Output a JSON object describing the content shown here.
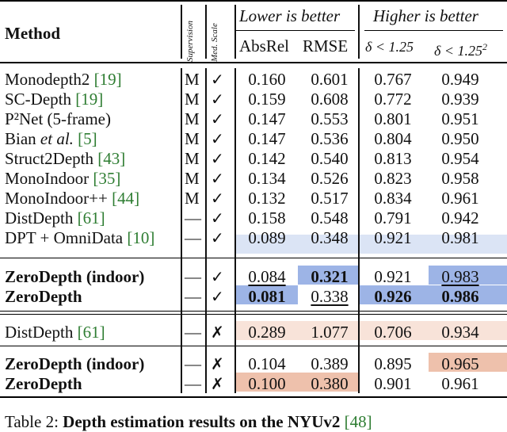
{
  "header": {
    "method": "Method",
    "supervision": "Supervision",
    "med_scale": "Med. Scale",
    "lower": "Lower is better",
    "higher": "Higher is better",
    "absrel": "AbsRel",
    "rmse": "RMSE",
    "d1": "δ < 1.25",
    "d2_base": "δ < 1.25",
    "d2_sup": "2"
  },
  "colors": {
    "blue_dark": "#9db4e6",
    "blue_light": "#dbe4f5",
    "orange_dark": "#eec1ac",
    "orange_light": "#f8e3d9"
  },
  "rows": [
    {
      "method": "Monodepth2 ",
      "ref": "[19]",
      "sup": "M",
      "scale": "✓",
      "absrel": "0.160",
      "rmse": "0.601",
      "d1": "0.767",
      "d2": "0.949"
    },
    {
      "method": "SC-Depth ",
      "ref": "[19]",
      "sup": "M",
      "scale": "✓",
      "absrel": "0.159",
      "rmse": "0.608",
      "d1": "0.772",
      "d2": "0.939"
    },
    {
      "method": "P²Net (5-frame)",
      "ref": "",
      "sup": "M",
      "scale": "✓",
      "absrel": "0.147",
      "rmse": "0.553",
      "d1": "0.801",
      "d2": "0.951"
    },
    {
      "method": "Bian et al. ",
      "ref": "[5]",
      "sup": "M",
      "scale": "✓",
      "absrel": "0.147",
      "rmse": "0.536",
      "d1": "0.804",
      "d2": "0.950"
    },
    {
      "method": "Struct2Depth ",
      "ref": "[43]",
      "sup": "M",
      "scale": "✓",
      "absrel": "0.142",
      "rmse": "0.540",
      "d1": "0.813",
      "d2": "0.954"
    },
    {
      "method": "MonoIndoor ",
      "ref": "[35]",
      "sup": "M",
      "scale": "✓",
      "absrel": "0.134",
      "rmse": "0.526",
      "d1": "0.823",
      "d2": "0.958"
    },
    {
      "method": "MonoIndoor++ ",
      "ref": "[44]",
      "sup": "M",
      "scale": "✓",
      "absrel": "0.132",
      "rmse": "0.517",
      "d1": "0.834",
      "d2": "0.961"
    },
    {
      "method": "DistDepth ",
      "ref": "[61]",
      "sup": "—",
      "scale": "✓",
      "absrel": "0.158",
      "rmse": "0.548",
      "d1": "0.791",
      "d2": "0.942"
    },
    {
      "method": "DPT + OmniData ",
      "ref": "[10]",
      "sup": "—",
      "scale": "✓",
      "absrel": "0.089",
      "rmse": "0.348",
      "d1": "0.921",
      "d2": "0.981"
    },
    {
      "method": "ZeroDepth (indoor)",
      "ref": "",
      "sup": "—",
      "scale": "✓",
      "absrel": "0.084",
      "rmse": "0.321",
      "d1": "0.921",
      "d2": "0.983"
    },
    {
      "method": "ZeroDepth",
      "ref": "",
      "sup": "—",
      "scale": "✓",
      "absrel": "0.081",
      "rmse": "0.338",
      "d1": "0.926",
      "d2": "0.986"
    },
    {
      "method": "DistDepth ",
      "ref": "[61]",
      "sup": "—",
      "scale": "✗",
      "absrel": "0.289",
      "rmse": "1.077",
      "d1": "0.706",
      "d2": "0.934"
    },
    {
      "method": "ZeroDepth (indoor)",
      "ref": "",
      "sup": "—",
      "scale": "✗",
      "absrel": "0.104",
      "rmse": "0.389",
      "d1": "0.895",
      "d2": "0.965"
    },
    {
      "method": "ZeroDepth",
      "ref": "",
      "sup": "—",
      "scale": "✗",
      "absrel": "0.100",
      "rmse": "0.380",
      "d1": "0.901",
      "d2": "0.961"
    }
  ],
  "caption": {
    "prefix": "Table 2: ",
    "bold": "Depth estimation results on the NYUv2 ",
    "ref": "[48]"
  }
}
